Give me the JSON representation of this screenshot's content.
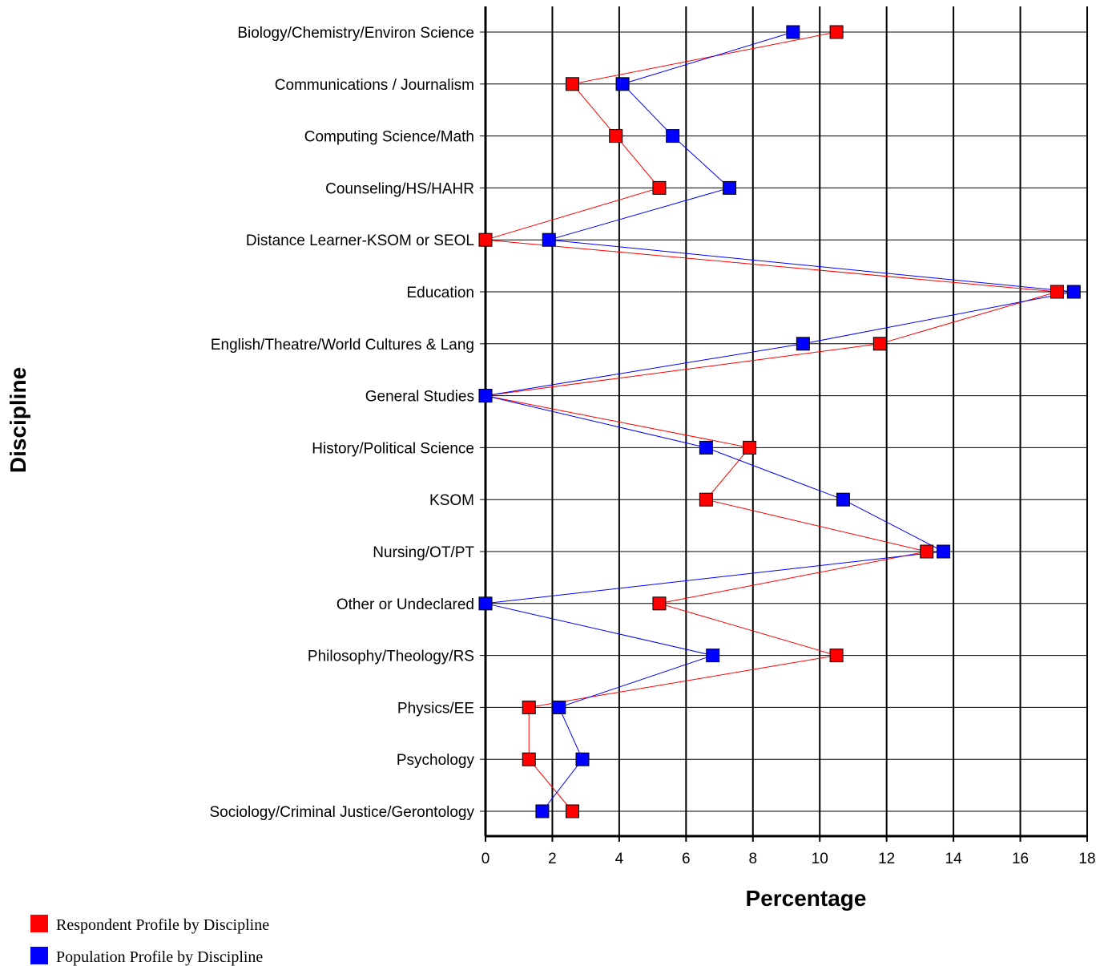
{
  "chart_data": {
    "type": "line",
    "orientation": "horizontal",
    "title": "",
    "xlabel": "Percentage",
    "ylabel": "Discipline",
    "xlim": [
      0,
      18
    ],
    "xticks": [
      "0",
      "2",
      "4",
      "6",
      "8",
      "10",
      "12",
      "14",
      "16",
      "18"
    ],
    "grid": true,
    "legend_position": "bottom-left",
    "categories": [
      "Biology/Chemistry/Environ Science",
      "Communications / Journalism",
      "Computing Science/Math",
      "Counseling/HS/HAHR",
      "Distance Learner-KSOM or SEOL",
      "Education",
      "English/Theatre/World Cultures & Lang",
      "General Studies",
      "History/Political Science",
      "KSOM",
      "Nursing/OT/PT",
      "Other or Undeclared",
      "Philosophy/Theology/RS",
      "Physics/EE",
      "Psychology",
      "Sociology/Criminal Justice/Gerontology"
    ],
    "series": [
      {
        "name": "Respondent Profile by Discipline",
        "color": "#ff0000",
        "values": [
          10.5,
          2.6,
          3.9,
          5.2,
          0,
          17.1,
          11.8,
          0,
          7.9,
          6.6,
          13.2,
          5.2,
          10.5,
          1.3,
          1.3,
          2.6
        ]
      },
      {
        "name": "Population Profile by Discipline",
        "color": "#0000ff",
        "values": [
          9.2,
          4.1,
          5.6,
          7.3,
          1.9,
          17.6,
          9.5,
          0,
          6.6,
          10.7,
          13.7,
          0,
          6.8,
          2.2,
          2.9,
          1.7
        ]
      }
    ]
  }
}
